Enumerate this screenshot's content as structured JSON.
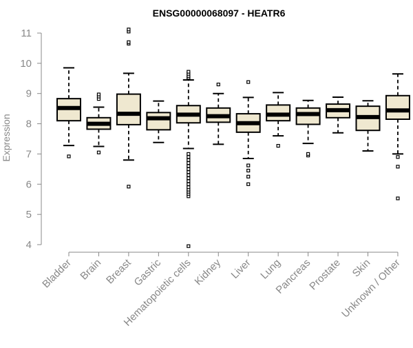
{
  "chart_data": {
    "type": "boxplot",
    "title": "ENSG00000068097 - HEATR6",
    "xlabel": "",
    "ylabel": "Expression",
    "ylim": [
      4,
      11
    ],
    "yticks": [
      4,
      5,
      6,
      7,
      8,
      9,
      10,
      11
    ],
    "categories": [
      "Bladder",
      "Brain",
      "Breast",
      "Gastric",
      "Hematopoietic cells",
      "Kidney",
      "Liver",
      "Lung",
      "Pancreas",
      "Prostate",
      "Skin",
      "Unknown / Other"
    ],
    "series": [
      {
        "name": "Bladder",
        "whisker_low": 7.28,
        "q1": 8.1,
        "median": 8.52,
        "q3": 8.83,
        "whisker_high": 9.85,
        "outliers": [
          6.92
        ]
      },
      {
        "name": "Brain",
        "whisker_low": 7.25,
        "q1": 7.82,
        "median": 8.0,
        "q3": 8.2,
        "whisker_high": 8.55,
        "outliers": [
          7.05,
          8.82,
          8.9,
          8.97
        ]
      },
      {
        "name": "Breast",
        "whisker_low": 6.8,
        "q1": 7.97,
        "median": 8.33,
        "q3": 8.98,
        "whisker_high": 9.67,
        "outliers": [
          5.92,
          10.65,
          10.7,
          11.05,
          11.12
        ]
      },
      {
        "name": "Gastric",
        "whisker_low": 7.38,
        "q1": 7.8,
        "median": 8.18,
        "q3": 8.37,
        "whisker_high": 8.75,
        "outliers": []
      },
      {
        "name": "Hematopoietic cells",
        "whisker_low": 7.18,
        "q1": 8.03,
        "median": 8.3,
        "q3": 8.6,
        "whisker_high": 9.45,
        "outliers": [
          3.95,
          5.6,
          5.68,
          5.75,
          5.82,
          5.9,
          6.0,
          6.1,
          6.2,
          6.3,
          6.4,
          6.5,
          6.6,
          6.7,
          6.8,
          6.9,
          7.0,
          9.5,
          9.52,
          9.58,
          9.65,
          9.72
        ]
      },
      {
        "name": "Kidney",
        "whisker_low": 7.32,
        "q1": 8.05,
        "median": 8.25,
        "q3": 8.52,
        "whisker_high": 9.0,
        "outliers": [
          9.3
        ]
      },
      {
        "name": "Liver",
        "whisker_low": 6.85,
        "q1": 7.72,
        "median": 8.02,
        "q3": 8.33,
        "whisker_high": 8.87,
        "outliers": [
          6.0,
          6.25,
          6.45,
          6.62,
          9.38
        ]
      },
      {
        "name": "Lung",
        "whisker_low": 7.6,
        "q1": 8.1,
        "median": 8.3,
        "q3": 8.62,
        "whisker_high": 9.03,
        "outliers": [
          7.27
        ]
      },
      {
        "name": "Pancreas",
        "whisker_low": 7.35,
        "q1": 7.98,
        "median": 8.32,
        "q3": 8.52,
        "whisker_high": 8.77,
        "outliers": [
          6.95,
          7.0
        ]
      },
      {
        "name": "Prostate",
        "whisker_low": 7.7,
        "q1": 8.2,
        "median": 8.45,
        "q3": 8.65,
        "whisker_high": 8.88,
        "outliers": []
      },
      {
        "name": "Skin",
        "whisker_low": 7.1,
        "q1": 7.78,
        "median": 8.22,
        "q3": 8.58,
        "whisker_high": 8.76,
        "outliers": []
      },
      {
        "name": "Unknown / Other",
        "whisker_low": 7.0,
        "q1": 8.15,
        "median": 8.44,
        "q3": 8.93,
        "whisker_high": 9.65,
        "outliers": [
          5.53,
          6.58,
          6.9
        ]
      }
    ],
    "box_color": "#efe8d0",
    "line_color": "#000000",
    "axis_color": "#888888",
    "grid": false
  }
}
